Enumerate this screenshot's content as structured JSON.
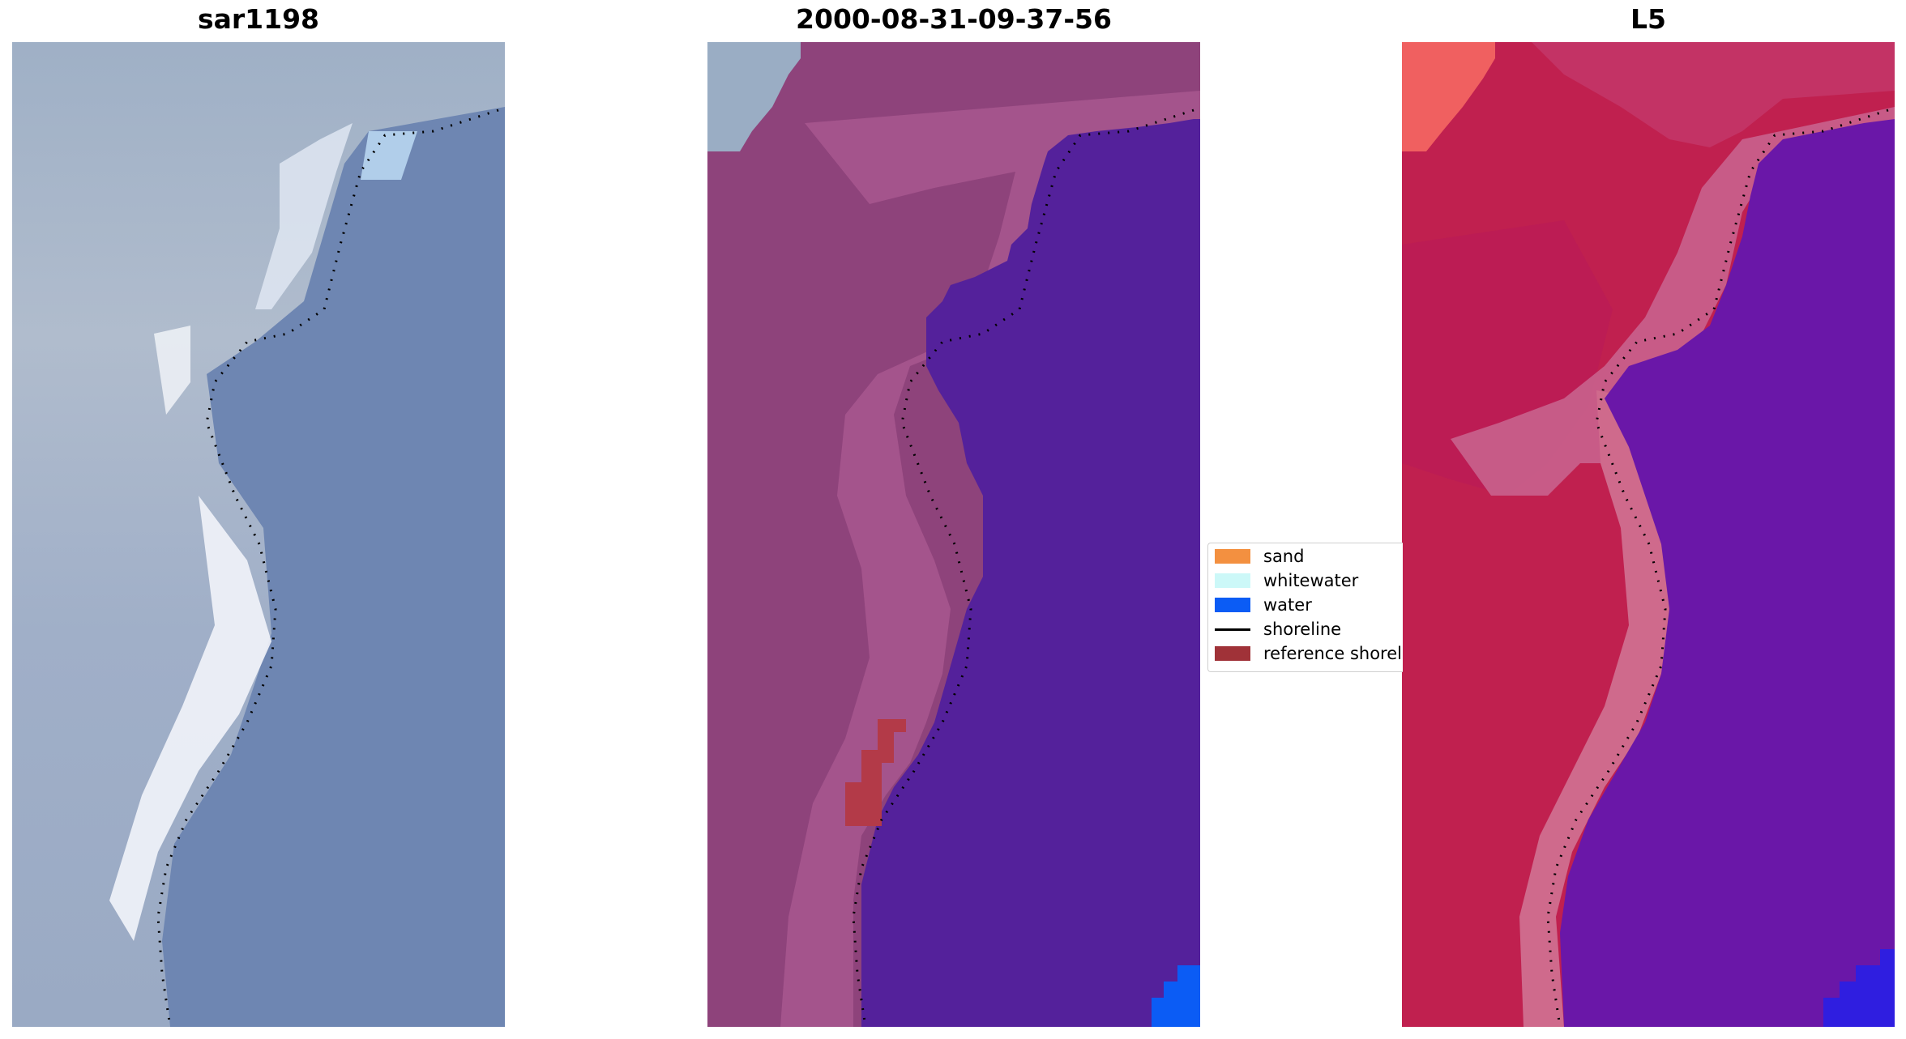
{
  "panels": [
    {
      "title": "sar1198",
      "kind": "rgb image"
    },
    {
      "title": "2000-08-31-09-37-56",
      "kind": "classified image"
    },
    {
      "title": "L5",
      "kind": "index image"
    }
  ],
  "legend": {
    "items": [
      {
        "label": "sand",
        "type": "patch",
        "color": "#f39040"
      },
      {
        "label": "whitewater",
        "type": "patch",
        "color": "#ccf8f8"
      },
      {
        "label": "water",
        "type": "patch",
        "color": "#0b5cf5"
      },
      {
        "label": "shoreline",
        "type": "line",
        "color": "#000000"
      },
      {
        "label": "reference shoreline",
        "type": "patch",
        "color": "#a03238"
      }
    ]
  },
  "colors": {
    "rgb_water": "#6e86b2",
    "rgb_land": "#a7b5c9",
    "rgb_surf": "#eef0f6",
    "class_land": "#8e437b",
    "class_water": "#54219b",
    "class_water_corner": "#0b5cf5",
    "class_reference": "#b33a48",
    "index_land": "#c0204f",
    "index_water": "#6a17a8",
    "index_band": "#cf6a8c",
    "index_corner": "#f06060",
    "shoreline_dots": "#000000"
  }
}
